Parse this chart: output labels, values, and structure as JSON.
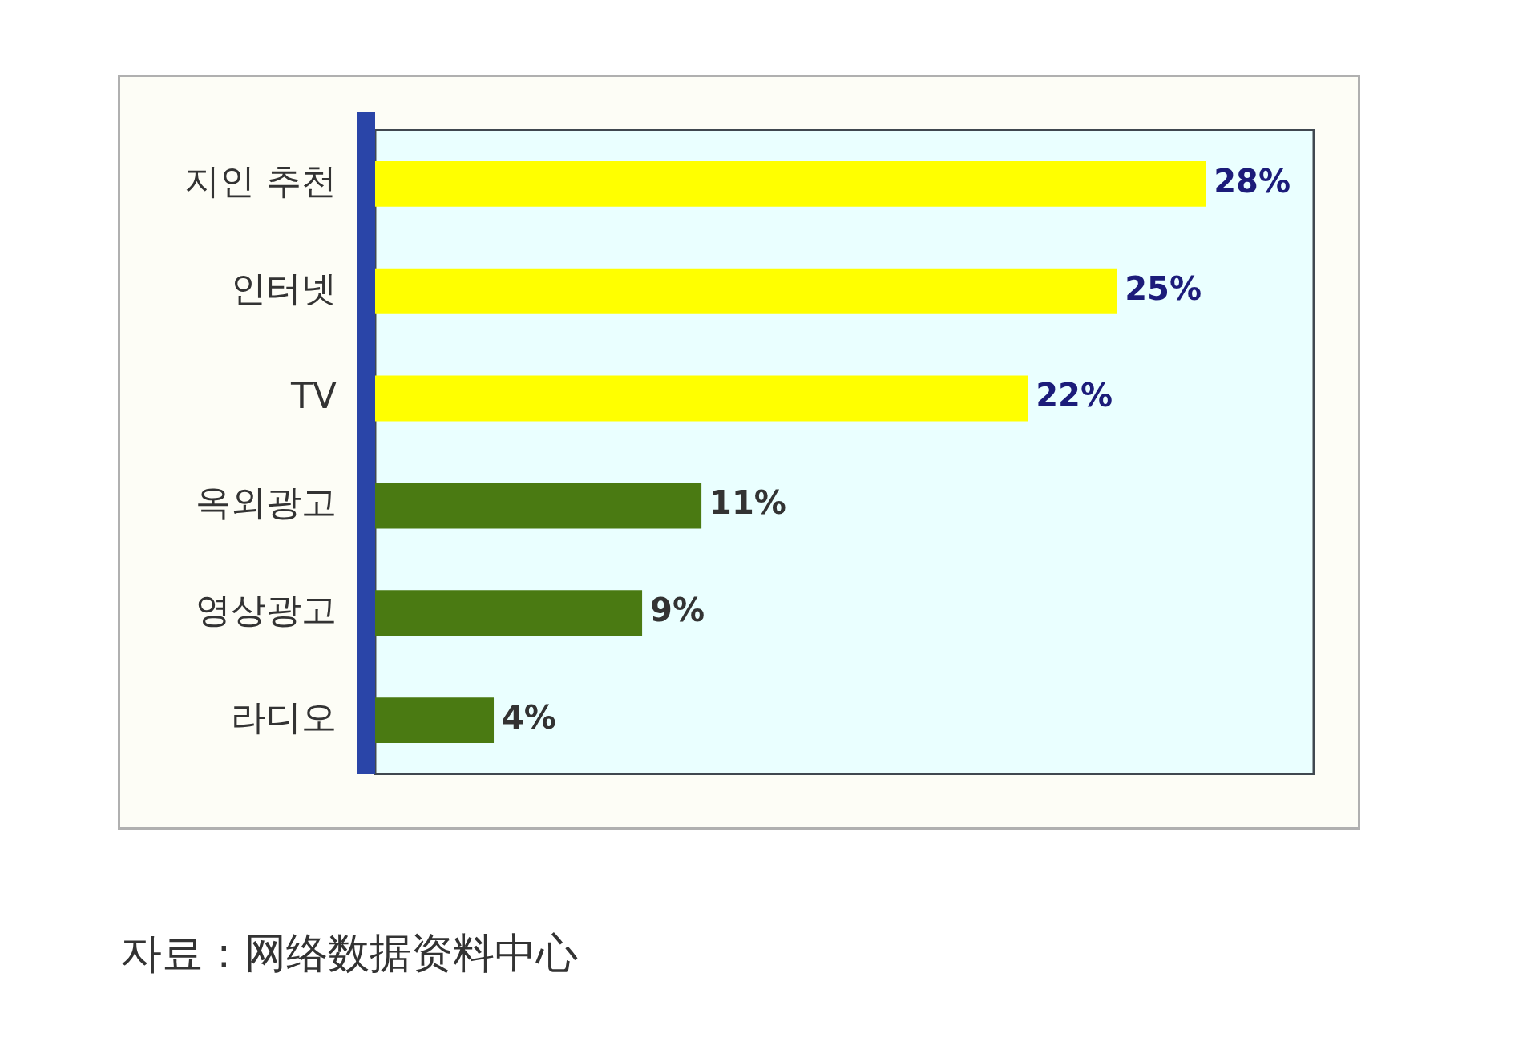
{
  "chart_data": {
    "type": "bar",
    "orientation": "horizontal",
    "categories": [
      "지인 추천",
      "인터넷",
      "TV",
      "옥외광고",
      "영상광고",
      "라디오"
    ],
    "values": [
      28,
      25,
      22,
      11,
      9,
      4
    ],
    "colors": [
      "#ffff00",
      "#ffff00",
      "#ffff00",
      "#4a7a12",
      "#4a7a12",
      "#4a7a12"
    ],
    "value_labels": [
      "28%",
      "25%",
      "22%",
      "11%",
      "9%",
      "4%"
    ],
    "grid": false,
    "legend": false,
    "annotations": [
      "자료 : 网络数据资料中心"
    ]
  }
}
